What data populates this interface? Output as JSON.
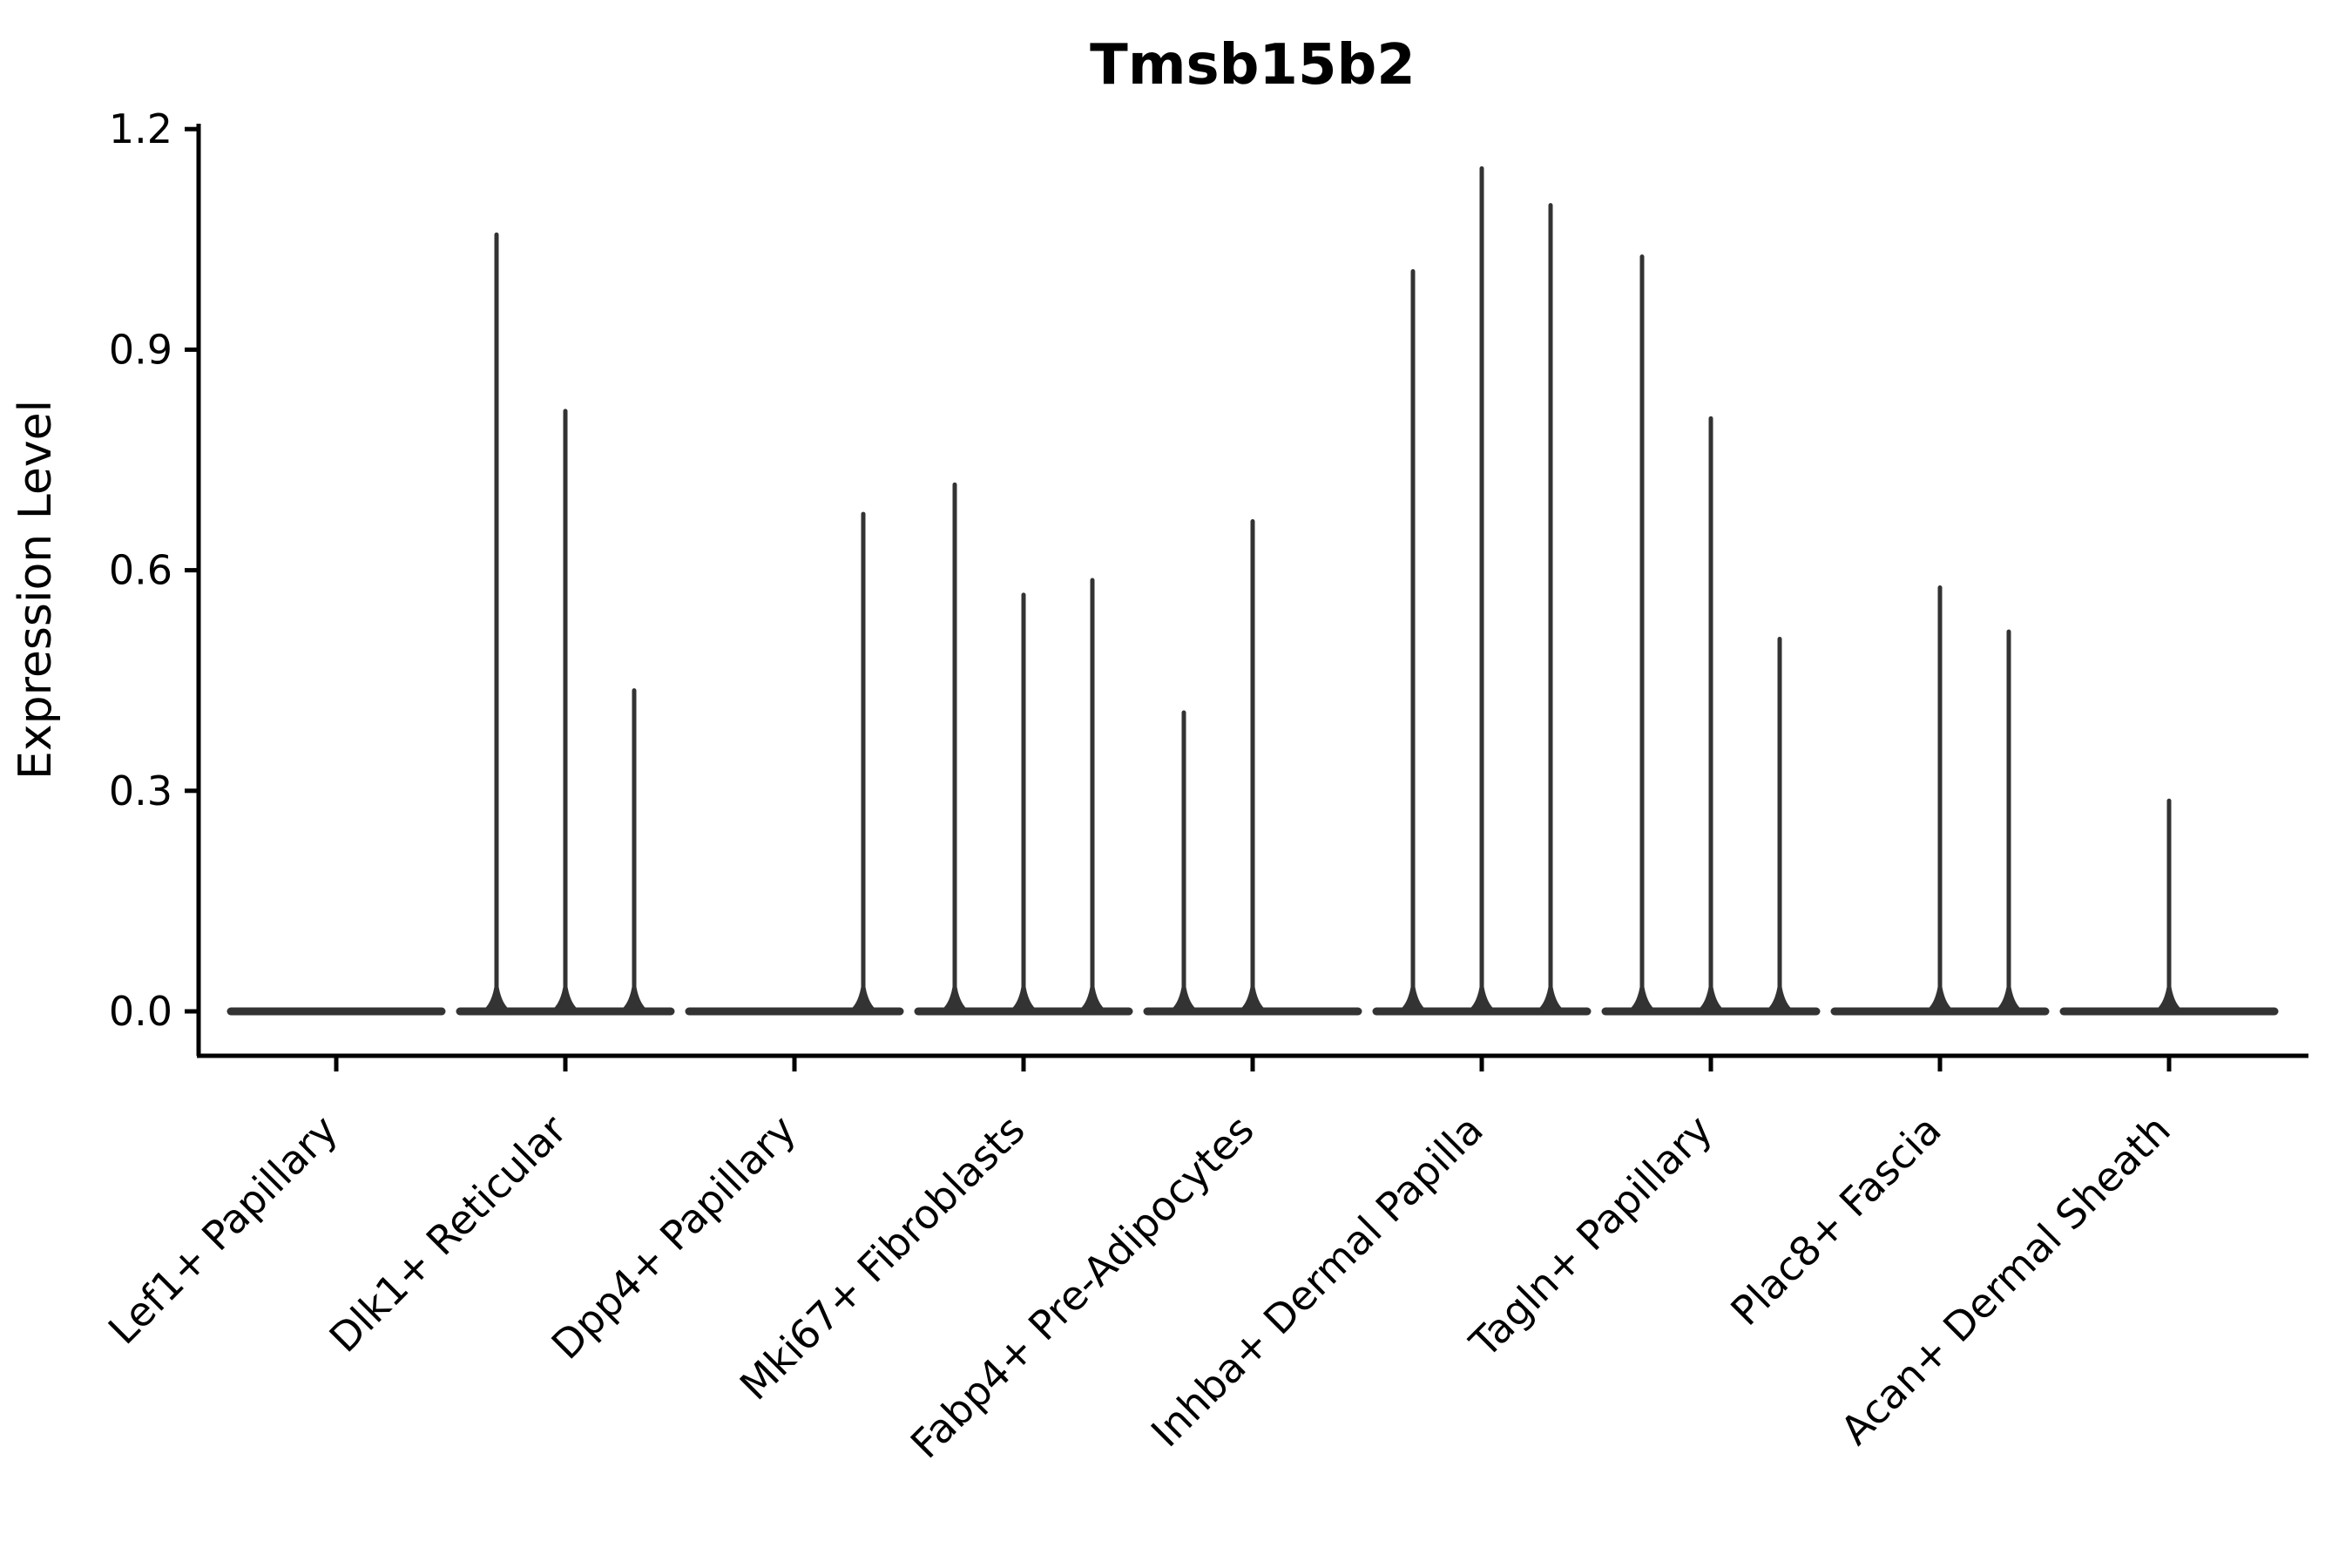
{
  "chart_data": {
    "type": "violin",
    "title": "Tmsb15b2",
    "ylabel": "Expression Level",
    "xlabel": "",
    "ylim": [
      0,
      1.2
    ],
    "yticks": [
      "0.0",
      "0.3",
      "0.6",
      "0.9",
      "1.2"
    ],
    "grid": false,
    "legend": "none",
    "categories": [
      "Lef1+ Papillary",
      "Dlk1+ Reticular",
      "Dpp4+ Papillary",
      "Mki67+ Fibroblasts",
      "Fabp4+ Pre-Adipocytes",
      "Inhba+ Dermal Papilla",
      "Tagln+ Papillary",
      "Plac8+ Fascia",
      "Acan+ Dermal Sheath"
    ],
    "violins_per_category": 3,
    "series": [
      {
        "category": "Lef1+ Papillary",
        "peaks": [
          0,
          0,
          0
        ]
      },
      {
        "category": "Dlk1+ Reticular",
        "peaks": [
          1.06,
          0.82,
          0.44
        ]
      },
      {
        "category": "Dpp4+ Papillary",
        "peaks": [
          0,
          0,
          0.68
        ]
      },
      {
        "category": "Mki67+ Fibroblasts",
        "peaks": [
          0.72,
          0.57,
          0.59
        ]
      },
      {
        "category": "Fabp4+ Pre-Adipocytes",
        "peaks": [
          0.41,
          0.67,
          0
        ]
      },
      {
        "category": "Inhba+ Dermal Papilla",
        "peaks": [
          1.01,
          1.15,
          1.1
        ]
      },
      {
        "category": "Tagln+ Papillary",
        "peaks": [
          1.03,
          0.81,
          0.51
        ]
      },
      {
        "category": "Plac8+ Fascia",
        "peaks": [
          0,
          0.58,
          0.52
        ]
      },
      {
        "category": "Acan+ Dermal Sheath",
        "peaks": [
          0,
          0.29,
          0
        ]
      }
    ],
    "notes": "Each category holds 3 needle-thin violins; peak = top of violin in Expression Level units; 0 = flat violin collapsed on baseline",
    "colors": {
      "violin": "#333333",
      "axis": "#000000",
      "text": "#000000",
      "background": "#ffffff"
    }
  }
}
